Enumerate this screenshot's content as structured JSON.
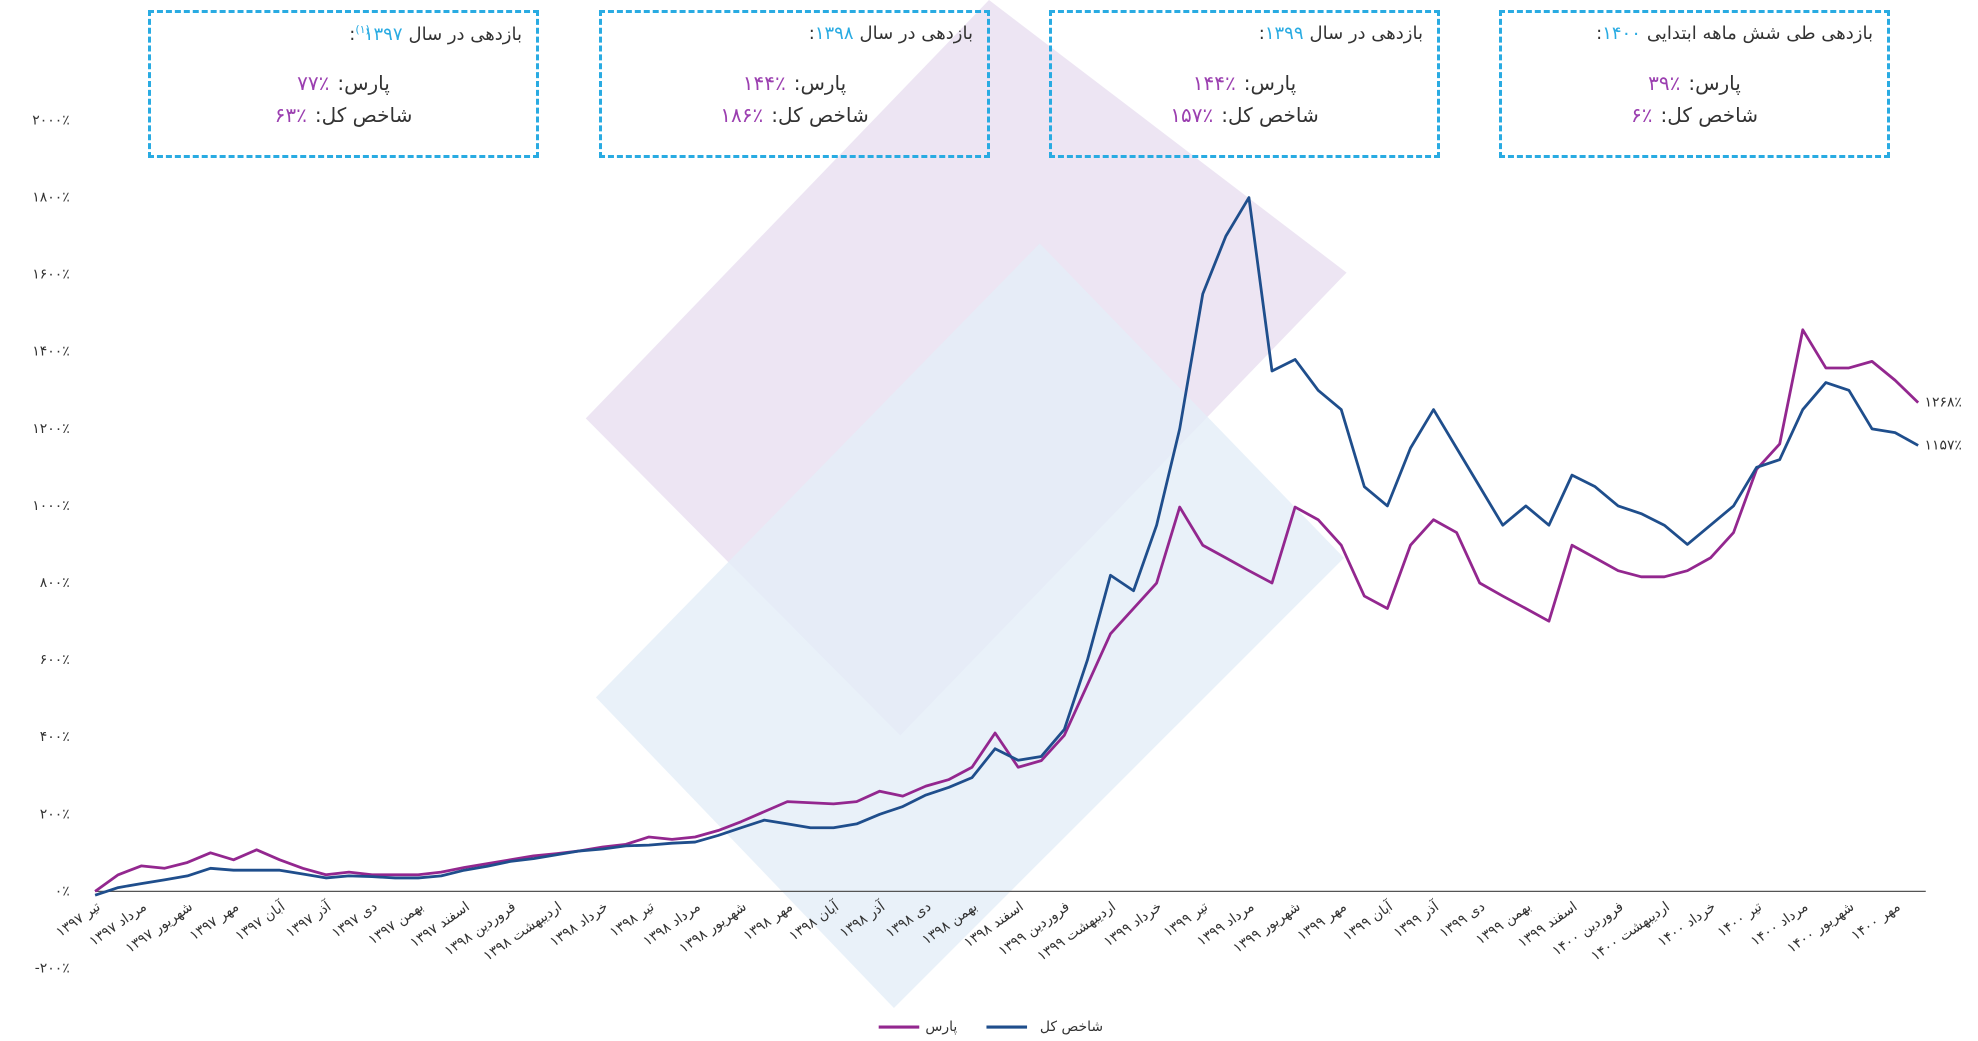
{
  "return_boxes": [
    {
      "title": "بازدهی در سال",
      "year": "۱۳۹۷",
      "note": "(۱)",
      "suffix": ":",
      "pars_label": "پارس:",
      "pars_value": "۷۷٪",
      "index_label": "شاخص کل:",
      "index_value": "۶۳٪"
    },
    {
      "title": "بازدهی در سال",
      "year": "۱۳۹۸",
      "suffix": ":",
      "pars_label": "پارس:",
      "pars_value": "۱۴۴٪",
      "index_label": "شاخص کل:",
      "index_value": "۱۸۶٪"
    },
    {
      "title": "بازدهی در سال",
      "year": "۱۳۹۹",
      "suffix": ":",
      "pars_label": "پارس:",
      "pars_value": "۱۴۴٪",
      "index_label": "شاخص کل:",
      "index_value": "۱۵۷٪"
    },
    {
      "title": "بازدهی طی شش ماهه ابتدایی",
      "year": "۱۴۰۰",
      "suffix": ":",
      "pars_label": "پارس:",
      "pars_value": "۳۹٪",
      "index_label": "شاخص کل:",
      "index_value": "۶٪"
    }
  ],
  "chart_data": {
    "type": "line",
    "categories": [
      "تیر ۱۳۹۷",
      null,
      "مرداد ۱۳۹۷",
      null,
      "شهریور ۱۳۹۷",
      null,
      "مهر ۱۳۹۷",
      null,
      "آبان ۱۳۹۷",
      null,
      "آذر ۱۳۹۷",
      null,
      "دی ۱۳۹۷",
      null,
      "بهمن ۱۳۹۷",
      null,
      "اسفند ۱۳۹۷",
      null,
      "فروردین ۱۳۹۸",
      null,
      "اردیبهشت ۱۳۹۸",
      null,
      "خرداد ۱۳۹۸",
      null,
      "تیر ۱۳۹۸",
      null,
      "مرداد ۱۳۹۸",
      null,
      "شهریور ۱۳۹۸",
      null,
      "مهر ۱۳۹۸",
      null,
      "آبان ۱۳۹۸",
      null,
      "آذر ۱۳۹۸",
      null,
      "دی ۱۳۹۸",
      null,
      "بهمن ۱۳۹۸",
      null,
      "اسفند ۱۳۹۸",
      null,
      "فروردین ۱۳۹۹",
      null,
      "اردیبهشت ۱۳۹۹",
      null,
      "خرداد ۱۳۹۹",
      null,
      "تیر ۱۳۹۹",
      null,
      "مرداد ۱۳۹۹",
      null,
      "شهریور ۱۳۹۹",
      null,
      "مهر ۱۳۹۹",
      null,
      "آبان ۱۳۹۹",
      null,
      "آذر ۱۳۹۹",
      null,
      "دی ۱۳۹۹",
      null,
      "بهمن ۱۳۹۹",
      null,
      "اسفند ۱۳۹۹",
      null,
      "فروردین ۱۴۰۰",
      null,
      "اردیبهشت ۱۴۰۰",
      null,
      "خرداد ۱۴۰۰",
      null,
      "تیر ۱۴۰۰",
      null,
      "مرداد ۱۴۰۰",
      null,
      "شهریور ۱۴۰۰",
      null,
      "مهر ۱۴۰۰",
      null
    ],
    "series": [
      {
        "name": "پارس",
        "color": "#93278f",
        "values": [
          0,
          43,
          66,
          60,
          75,
          100,
          82,
          108,
          82,
          60,
          43,
          50,
          43,
          43,
          43,
          50,
          62,
          72,
          82,
          92,
          98,
          105,
          115,
          122,
          141,
          135,
          141,
          158,
          181,
          207,
          233,
          230,
          227,
          233,
          260,
          247,
          273,
          290,
          322,
          411,
          322,
          339,
          405,
          536,
          668,
          734,
          800,
          997,
          898,
          865,
          832,
          800,
          997,
          964,
          898,
          766,
          734,
          898,
          964,
          931,
          800,
          766,
          734,
          701,
          898,
          865,
          832,
          816,
          816,
          832,
          865,
          931,
          1095,
          1161,
          1457,
          1358,
          1358,
          1375,
          1326,
          1268
        ],
        "value_labels": {
          "79": "۱۲۶۸٪"
        }
      },
      {
        "name": "شاخص کل",
        "color": "#1f4e8c",
        "values": [
          -10,
          10,
          20,
          30,
          40,
          60,
          55,
          55,
          55,
          45,
          35,
          40,
          38,
          35,
          35,
          40,
          55,
          65,
          78,
          85,
          95,
          105,
          110,
          118,
          120,
          125,
          128,
          145,
          165,
          185,
          175,
          165,
          165,
          175,
          200,
          220,
          250,
          270,
          295,
          370,
          340,
          350,
          420,
          600,
          820,
          780,
          950,
          1200,
          1550,
          1700,
          1800,
          1350,
          1380,
          1300,
          1250,
          1050,
          1000,
          1150,
          1250,
          1150,
          1050,
          950,
          1000,
          950,
          1080,
          1050,
          1000,
          980,
          950,
          900,
          950,
          1000,
          1100,
          1120,
          1250,
          1320,
          1300,
          1200,
          1190,
          1157
        ],
        "value_labels": {
          "79": "۱۱۵۷٪"
        }
      }
    ],
    "ylim": [
      -200,
      2000
    ],
    "yticks": [
      {
        "value": -200,
        "label": "-۲۰۰٪"
      },
      {
        "value": 0,
        "label": "۰٪"
      },
      {
        "value": 200,
        "label": "۲۰۰٪"
      },
      {
        "value": 400,
        "label": "۴۰۰٪"
      },
      {
        "value": 600,
        "label": "۶۰۰٪"
      },
      {
        "value": 800,
        "label": "۸۰۰٪"
      },
      {
        "value": 1000,
        "label": "۱۰۰۰٪"
      },
      {
        "value": 1200,
        "label": "۱۲۰۰٪"
      },
      {
        "value": 1400,
        "label": "۱۴۰۰٪"
      },
      {
        "value": 1600,
        "label": "۱۶۰۰٪"
      },
      {
        "value": 1800,
        "label": "۱۸۰۰٪"
      },
      {
        "value": 2000,
        "label": "۲۰۰۰٪"
      }
    ],
    "grid": false
  }
}
